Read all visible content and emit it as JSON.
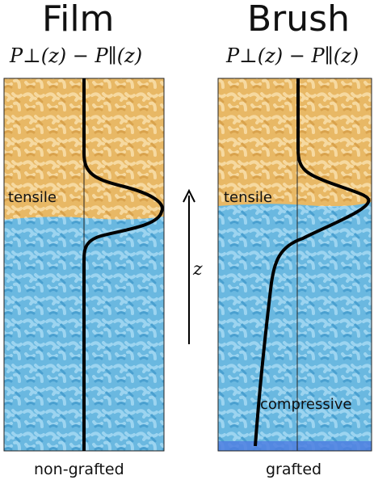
{
  "panels": [
    {
      "title": "Film",
      "formula": "P⊥(z) − P∥(z)",
      "caption": "non-grafted",
      "region_labels": [
        "tensile"
      ]
    },
    {
      "title": "Brush",
      "formula": "P⊥(z) − P∥(z)",
      "caption": "grafted",
      "region_labels": [
        "tensile",
        "compressive"
      ]
    }
  ],
  "axis": {
    "label": "z"
  },
  "colors": {
    "top_phase": "#f0c36a",
    "bottom_phase": "#5ec3f0",
    "graft_layer": "#4f7fe0",
    "curve": "#000000"
  }
}
